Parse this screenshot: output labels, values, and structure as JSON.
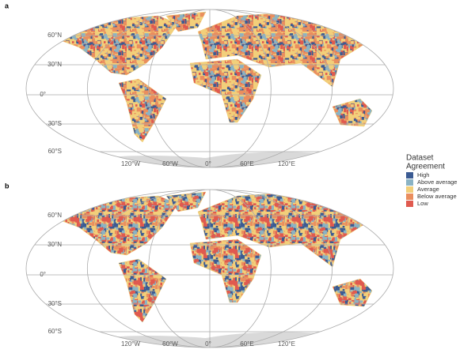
{
  "panels": [
    {
      "label": "a",
      "lat_labels": [
        "60°N",
        "30°N",
        "0°",
        "30°S",
        "60°S"
      ],
      "lon_labels": [
        "120°W",
        "60°W",
        "0°",
        "60°E",
        "120°E"
      ]
    },
    {
      "label": "b",
      "lat_labels": [
        "60°N",
        "30°N",
        "0°",
        "30°S",
        "60°S"
      ],
      "lon_labels": [
        "120°W",
        "60°W",
        "0°",
        "60°E",
        "120°E"
      ]
    }
  ],
  "legend": {
    "title": [
      "Dataset",
      "Agreement"
    ],
    "items": [
      {
        "label": "High",
        "color": "#3b5b93"
      },
      {
        "label": "Above average",
        "color": "#8ab3c4"
      },
      {
        "label": "Average",
        "color": "#f2cf7a"
      },
      {
        "label": "Below average",
        "color": "#ea8e5e"
      },
      {
        "label": "Low",
        "color": "#e05a4f"
      }
    ]
  }
}
